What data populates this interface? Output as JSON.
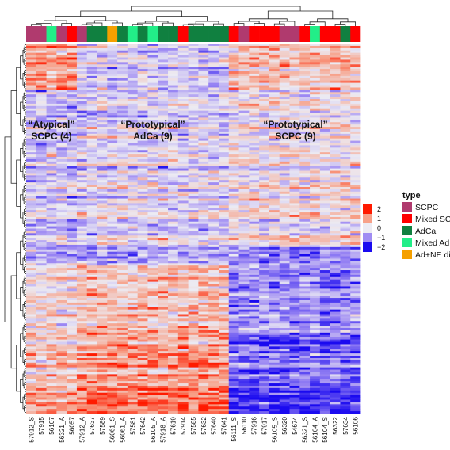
{
  "chart_data": {
    "type": "heatmap",
    "samples": [
      "57912_S",
      "57915",
      "56107",
      "56321_A",
      "56057",
      "57912_A",
      "57637",
      "57589",
      "56061_S",
      "56061_A",
      "57581",
      "57642",
      "56105_A",
      "57918_A",
      "57619",
      "57914",
      "57585",
      "57632",
      "57640",
      "57641",
      "56111_S",
      "56110",
      "57916",
      "57917",
      "56105_S",
      "56320",
      "54674",
      "56321_S",
      "56104_A",
      "56104_S",
      "56322",
      "57634",
      "56106"
    ],
    "sample_types": [
      "SCPC",
      "SCPC",
      "Mixed Ad",
      "SCPC",
      "Mixed SC",
      "SCPC",
      "AdCa",
      "AdCa",
      "Ad+NE diff",
      "AdCa",
      "Mixed Ad",
      "AdCa",
      "Mixed Ad",
      "AdCa",
      "AdCa",
      "Mixed SC",
      "AdCa",
      "AdCa",
      "AdCa",
      "AdCa",
      "Mixed SC",
      "SCPC",
      "Mixed SC",
      "Mixed SC",
      "Mixed SC",
      "SCPC",
      "SCPC",
      "Mixed SC",
      "Mixed Ad",
      "Mixed SC",
      "Mixed SC",
      "AdCa",
      "Mixed SC"
    ],
    "cluster_labels": [
      {
        "text": "“Atypical”",
        "line2": "SCPC (4)"
      },
      {
        "text": "“Prototypical”",
        "line2": "AdCa (9)"
      },
      {
        "text": "“Prototypical”",
        "line2": "SCPC (9)"
      }
    ],
    "color_scale": {
      "ticks": [
        "2",
        "1",
        "0",
        "−1",
        "−2"
      ],
      "values": [
        2,
        1,
        0,
        -1,
        -2
      ],
      "colors": [
        "#ff1a00",
        "#f7a189",
        "#ecebf3",
        "#a08cf3",
        "#1a0af0"
      ],
      "min": -2,
      "max": 2
    },
    "legend": {
      "title": "type",
      "entries": [
        {
          "label": "SCPC",
          "color": "#b03a6e"
        },
        {
          "label": "Mixed SC",
          "color": "#ff0000"
        },
        {
          "label": "AdCa",
          "color": "#108040"
        },
        {
          "label": "Mixed Ad",
          "color": "#22ee88"
        },
        {
          "label": "Ad+NE diff",
          "color": "#f5a000"
        }
      ]
    },
    "row_count": 160,
    "seed": 7
  }
}
